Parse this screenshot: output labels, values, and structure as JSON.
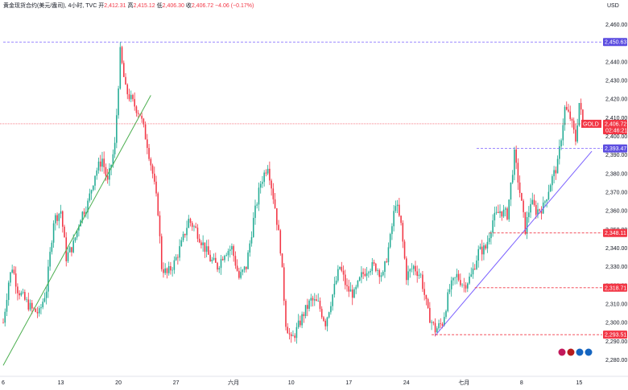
{
  "header": {
    "symbol_title": "黄金现货合约(美元/盎司), 4小时, TVC",
    "open_label": "开",
    "open_value": "2,412.31",
    "high_label": "高",
    "high_value": "2,415.12",
    "low_label": "低",
    "low_value": "2,406.30",
    "close_label": "收",
    "close_value": "2,406.72",
    "change": "−4.06 (−0.17%)"
  },
  "currency": "USD",
  "price_tag": {
    "symbol": "GOLD",
    "price": "2,406.72",
    "countdown": "02:46:21"
  },
  "colors": {
    "up": "#22ab94",
    "down": "#f23645",
    "blue_line": "#2962ff",
    "green_trend": "#4caf50",
    "purple_trend": "#7b61ff"
  },
  "chart_data": {
    "type": "candlestick",
    "ylim": [
      2272,
      2468
    ],
    "y_ticks": [
      2460,
      2450,
      2440,
      2430,
      2420,
      2410,
      2400,
      2390,
      2380,
      2370,
      2360,
      2350,
      2340,
      2330,
      2320,
      2310,
      2300,
      2290,
      2280
    ],
    "y_tick_labels": [
      "2,460.00",
      "2,450.00",
      "2,440.00",
      "2,430.00",
      "2,420.00",
      "2,410.00",
      "2,400.00",
      "2,390.00",
      "2,380.00",
      "2,370.00",
      "2,360.00",
      "2,350.00",
      "2,340.00",
      "2,330.00",
      "2,320.00",
      "2,310.00",
      "2,300.00",
      "2,290.00",
      "2,280.00"
    ],
    "x_ticks": [
      {
        "label": "6",
        "i": 0
      },
      {
        "label": "13",
        "i": 32
      },
      {
        "label": "20",
        "i": 64
      },
      {
        "label": "27",
        "i": 96
      },
      {
        "label": "六月",
        "i": 128
      },
      {
        "label": "10",
        "i": 160
      },
      {
        "label": "17",
        "i": 192
      },
      {
        "label": "24",
        "i": 224
      },
      {
        "label": "七月",
        "i": 256
      },
      {
        "label": "8",
        "i": 288
      },
      {
        "label": "15",
        "i": 320
      }
    ],
    "horizontal_levels": [
      {
        "value": 2450.63,
        "label": "2,450.63",
        "style": "blue",
        "from_i": 0
      },
      {
        "value": 2393.47,
        "label": "2,393.47",
        "style": "blue",
        "from_i": 263
      },
      {
        "value": 2348.11,
        "label": "2,348.11",
        "style": "red",
        "from_i": 270
      },
      {
        "value": 2318.71,
        "label": "2,318.71",
        "style": "red",
        "from_i": 262
      },
      {
        "value": 2293.51,
        "label": "2,293.51",
        "style": "red",
        "from_i": 238
      }
    ],
    "trendlines": [
      {
        "color": "green",
        "from": [
          0,
          2277
        ],
        "to": [
          82,
          2422
        ]
      },
      {
        "color": "purple",
        "from": [
          240,
          2293
        ],
        "to": [
          327,
          2392
        ]
      }
    ],
    "anchors": [
      [
        0,
        2300
      ],
      [
        3,
        2322
      ],
      [
        5,
        2330
      ],
      [
        8,
        2318
      ],
      [
        12,
        2312
      ],
      [
        16,
        2307
      ],
      [
        20,
        2305
      ],
      [
        24,
        2318
      ],
      [
        28,
        2355
      ],
      [
        32,
        2360
      ],
      [
        35,
        2335
      ],
      [
        39,
        2342
      ],
      [
        43,
        2357
      ],
      [
        47,
        2364
      ],
      [
        51,
        2380
      ],
      [
        55,
        2388
      ],
      [
        58,
        2375
      ],
      [
        62,
        2395
      ],
      [
        65,
        2445
      ],
      [
        68,
        2425
      ],
      [
        72,
        2418
      ],
      [
        76,
        2412
      ],
      [
        80,
        2396
      ],
      [
        83,
        2380
      ],
      [
        86,
        2360
      ],
      [
        88,
        2330
      ],
      [
        91,
        2326
      ],
      [
        95,
        2332
      ],
      [
        99,
        2342
      ],
      [
        103,
        2355
      ],
      [
        107,
        2350
      ],
      [
        111,
        2342
      ],
      [
        115,
        2334
      ],
      [
        119,
        2330
      ],
      [
        123,
        2338
      ],
      [
        127,
        2340
      ],
      [
        131,
        2324
      ],
      [
        135,
        2330
      ],
      [
        139,
        2355
      ],
      [
        143,
        2375
      ],
      [
        147,
        2385
      ],
      [
        151,
        2362
      ],
      [
        154,
        2340
      ],
      [
        157,
        2300
      ],
      [
        160,
        2290
      ],
      [
        163,
        2296
      ],
      [
        167,
        2305
      ],
      [
        171,
        2312
      ],
      [
        175,
        2310
      ],
      [
        179,
        2300
      ],
      [
        183,
        2315
      ],
      [
        187,
        2330
      ],
      [
        191,
        2318
      ],
      [
        195,
        2315
      ],
      [
        199,
        2325
      ],
      [
        203,
        2330
      ],
      [
        207,
        2330
      ],
      [
        211,
        2325
      ],
      [
        215,
        2345
      ],
      [
        218,
        2365
      ],
      [
        221,
        2352
      ],
      [
        224,
        2325
      ],
      [
        228,
        2330
      ],
      [
        232,
        2325
      ],
      [
        236,
        2305
      ],
      [
        240,
        2296
      ],
      [
        244,
        2300
      ],
      [
        248,
        2318
      ],
      [
        252,
        2325
      ],
      [
        256,
        2320
      ],
      [
        260,
        2325
      ],
      [
        264,
        2338
      ],
      [
        268,
        2340
      ],
      [
        272,
        2355
      ],
      [
        276,
        2360
      ],
      [
        280,
        2358
      ],
      [
        284,
        2390
      ],
      [
        287,
        2370
      ],
      [
        290,
        2350
      ],
      [
        293,
        2365
      ],
      [
        296,
        2360
      ],
      [
        300,
        2362
      ],
      [
        304,
        2375
      ],
      [
        308,
        2385
      ],
      [
        312,
        2415
      ],
      [
        315,
        2410
      ],
      [
        318,
        2398
      ],
      [
        320,
        2418
      ],
      [
        322,
        2406.72
      ]
    ],
    "last_close": 2406.72
  }
}
